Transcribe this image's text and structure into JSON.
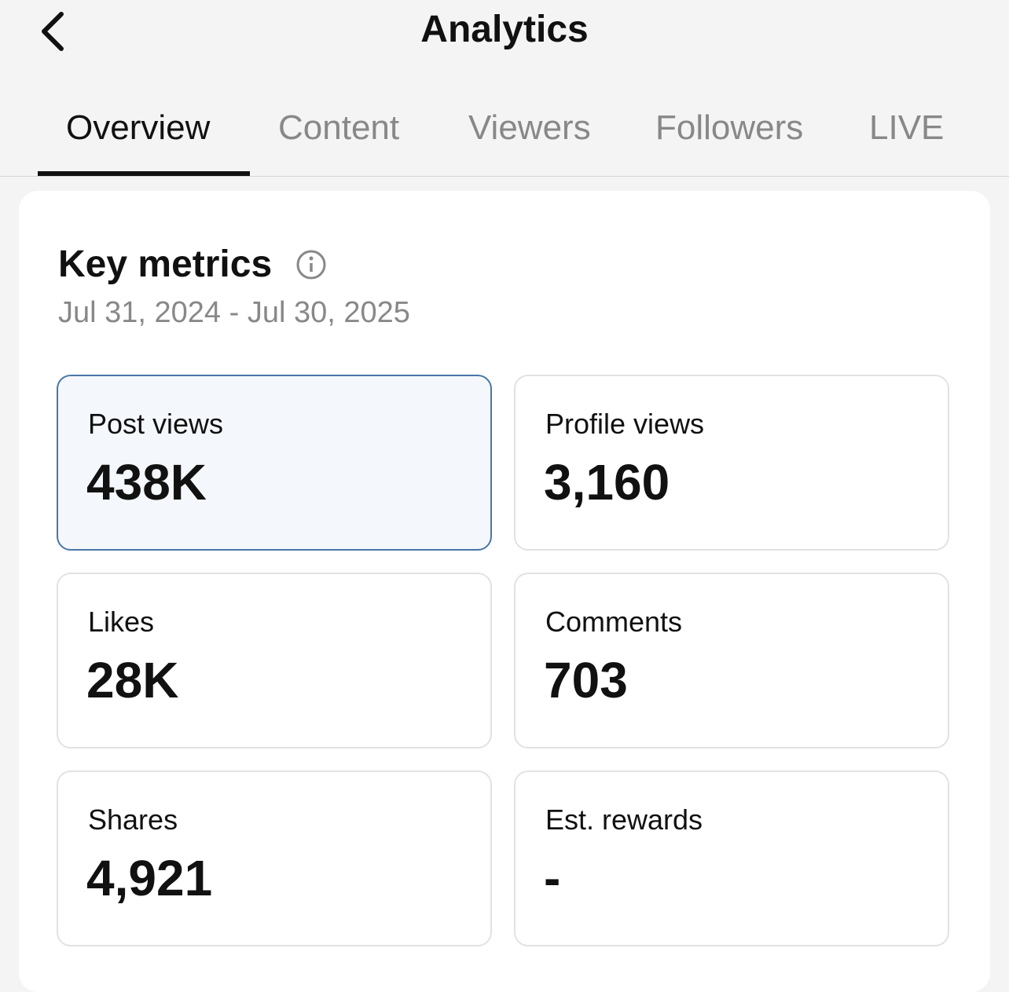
{
  "header": {
    "title": "Analytics"
  },
  "tabs": [
    "Overview",
    "Content",
    "Viewers",
    "Followers",
    "LIVE"
  ],
  "section": {
    "title": "Key metrics",
    "date_range": "Jul 31, 2024 - Jul 30, 2025"
  },
  "metrics": [
    {
      "label": "Post views",
      "value": "438K"
    },
    {
      "label": "Profile views",
      "value": "3,160"
    },
    {
      "label": "Likes",
      "value": "28K"
    },
    {
      "label": "Comments",
      "value": "703"
    },
    {
      "label": "Shares",
      "value": "4,921"
    },
    {
      "label": "Est. rewards",
      "value": "-"
    }
  ]
}
